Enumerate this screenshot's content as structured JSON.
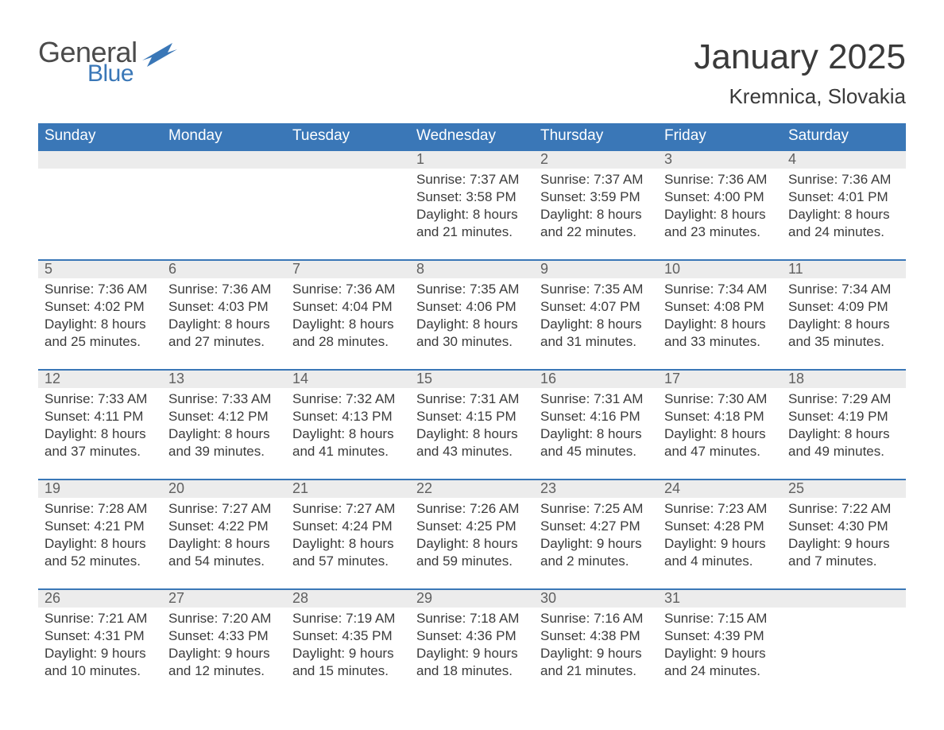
{
  "logo": {
    "word1": "General",
    "word2": "Blue",
    "word1_color": "#4b4b4b",
    "word2_color": "#3a77b7",
    "flag_colors": [
      "#3a77b7",
      "#5a95cf"
    ]
  },
  "header": {
    "month_title": "January 2025",
    "location": "Kremnica, Slovakia"
  },
  "colors": {
    "header_bg": "#3a77b7",
    "header_text": "#ffffff",
    "daynum_bg": "#ececec",
    "daynum_text": "#606060",
    "body_text": "#3b3b3b",
    "week_divider": "#3a77b7",
    "page_bg": "#ffffff"
  },
  "days_of_week": [
    "Sunday",
    "Monday",
    "Tuesday",
    "Wednesday",
    "Thursday",
    "Friday",
    "Saturday"
  ],
  "weeks": [
    {
      "cells": [
        {
          "n": "",
          "sunrise": "",
          "sunset": "",
          "daylight": ""
        },
        {
          "n": "",
          "sunrise": "",
          "sunset": "",
          "daylight": ""
        },
        {
          "n": "",
          "sunrise": "",
          "sunset": "",
          "daylight": ""
        },
        {
          "n": "1",
          "sunrise": "Sunrise: 7:37 AM",
          "sunset": "Sunset: 3:58 PM",
          "daylight": "Daylight: 8 hours and 21 minutes."
        },
        {
          "n": "2",
          "sunrise": "Sunrise: 7:37 AM",
          "sunset": "Sunset: 3:59 PM",
          "daylight": "Daylight: 8 hours and 22 minutes."
        },
        {
          "n": "3",
          "sunrise": "Sunrise: 7:36 AM",
          "sunset": "Sunset: 4:00 PM",
          "daylight": "Daylight: 8 hours and 23 minutes."
        },
        {
          "n": "4",
          "sunrise": "Sunrise: 7:36 AM",
          "sunset": "Sunset: 4:01 PM",
          "daylight": "Daylight: 8 hours and 24 minutes."
        }
      ]
    },
    {
      "cells": [
        {
          "n": "5",
          "sunrise": "Sunrise: 7:36 AM",
          "sunset": "Sunset: 4:02 PM",
          "daylight": "Daylight: 8 hours and 25 minutes."
        },
        {
          "n": "6",
          "sunrise": "Sunrise: 7:36 AM",
          "sunset": "Sunset: 4:03 PM",
          "daylight": "Daylight: 8 hours and 27 minutes."
        },
        {
          "n": "7",
          "sunrise": "Sunrise: 7:36 AM",
          "sunset": "Sunset: 4:04 PM",
          "daylight": "Daylight: 8 hours and 28 minutes."
        },
        {
          "n": "8",
          "sunrise": "Sunrise: 7:35 AM",
          "sunset": "Sunset: 4:06 PM",
          "daylight": "Daylight: 8 hours and 30 minutes."
        },
        {
          "n": "9",
          "sunrise": "Sunrise: 7:35 AM",
          "sunset": "Sunset: 4:07 PM",
          "daylight": "Daylight: 8 hours and 31 minutes."
        },
        {
          "n": "10",
          "sunrise": "Sunrise: 7:34 AM",
          "sunset": "Sunset: 4:08 PM",
          "daylight": "Daylight: 8 hours and 33 minutes."
        },
        {
          "n": "11",
          "sunrise": "Sunrise: 7:34 AM",
          "sunset": "Sunset: 4:09 PM",
          "daylight": "Daylight: 8 hours and 35 minutes."
        }
      ]
    },
    {
      "cells": [
        {
          "n": "12",
          "sunrise": "Sunrise: 7:33 AM",
          "sunset": "Sunset: 4:11 PM",
          "daylight": "Daylight: 8 hours and 37 minutes."
        },
        {
          "n": "13",
          "sunrise": "Sunrise: 7:33 AM",
          "sunset": "Sunset: 4:12 PM",
          "daylight": "Daylight: 8 hours and 39 minutes."
        },
        {
          "n": "14",
          "sunrise": "Sunrise: 7:32 AM",
          "sunset": "Sunset: 4:13 PM",
          "daylight": "Daylight: 8 hours and 41 minutes."
        },
        {
          "n": "15",
          "sunrise": "Sunrise: 7:31 AM",
          "sunset": "Sunset: 4:15 PM",
          "daylight": "Daylight: 8 hours and 43 minutes."
        },
        {
          "n": "16",
          "sunrise": "Sunrise: 7:31 AM",
          "sunset": "Sunset: 4:16 PM",
          "daylight": "Daylight: 8 hours and 45 minutes."
        },
        {
          "n": "17",
          "sunrise": "Sunrise: 7:30 AM",
          "sunset": "Sunset: 4:18 PM",
          "daylight": "Daylight: 8 hours and 47 minutes."
        },
        {
          "n": "18",
          "sunrise": "Sunrise: 7:29 AM",
          "sunset": "Sunset: 4:19 PM",
          "daylight": "Daylight: 8 hours and 49 minutes."
        }
      ]
    },
    {
      "cells": [
        {
          "n": "19",
          "sunrise": "Sunrise: 7:28 AM",
          "sunset": "Sunset: 4:21 PM",
          "daylight": "Daylight: 8 hours and 52 minutes."
        },
        {
          "n": "20",
          "sunrise": "Sunrise: 7:27 AM",
          "sunset": "Sunset: 4:22 PM",
          "daylight": "Daylight: 8 hours and 54 minutes."
        },
        {
          "n": "21",
          "sunrise": "Sunrise: 7:27 AM",
          "sunset": "Sunset: 4:24 PM",
          "daylight": "Daylight: 8 hours and 57 minutes."
        },
        {
          "n": "22",
          "sunrise": "Sunrise: 7:26 AM",
          "sunset": "Sunset: 4:25 PM",
          "daylight": "Daylight: 8 hours and 59 minutes."
        },
        {
          "n": "23",
          "sunrise": "Sunrise: 7:25 AM",
          "sunset": "Sunset: 4:27 PM",
          "daylight": "Daylight: 9 hours and 2 minutes."
        },
        {
          "n": "24",
          "sunrise": "Sunrise: 7:23 AM",
          "sunset": "Sunset: 4:28 PM",
          "daylight": "Daylight: 9 hours and 4 minutes."
        },
        {
          "n": "25",
          "sunrise": "Sunrise: 7:22 AM",
          "sunset": "Sunset: 4:30 PM",
          "daylight": "Daylight: 9 hours and 7 minutes."
        }
      ]
    },
    {
      "cells": [
        {
          "n": "26",
          "sunrise": "Sunrise: 7:21 AM",
          "sunset": "Sunset: 4:31 PM",
          "daylight": "Daylight: 9 hours and 10 minutes."
        },
        {
          "n": "27",
          "sunrise": "Sunrise: 7:20 AM",
          "sunset": "Sunset: 4:33 PM",
          "daylight": "Daylight: 9 hours and 12 minutes."
        },
        {
          "n": "28",
          "sunrise": "Sunrise: 7:19 AM",
          "sunset": "Sunset: 4:35 PM",
          "daylight": "Daylight: 9 hours and 15 minutes."
        },
        {
          "n": "29",
          "sunrise": "Sunrise: 7:18 AM",
          "sunset": "Sunset: 4:36 PM",
          "daylight": "Daylight: 9 hours and 18 minutes."
        },
        {
          "n": "30",
          "sunrise": "Sunrise: 7:16 AM",
          "sunset": "Sunset: 4:38 PM",
          "daylight": "Daylight: 9 hours and 21 minutes."
        },
        {
          "n": "31",
          "sunrise": "Sunrise: 7:15 AM",
          "sunset": "Sunset: 4:39 PM",
          "daylight": "Daylight: 9 hours and 24 minutes."
        },
        {
          "n": "",
          "sunrise": "",
          "sunset": "",
          "daylight": ""
        }
      ]
    }
  ]
}
